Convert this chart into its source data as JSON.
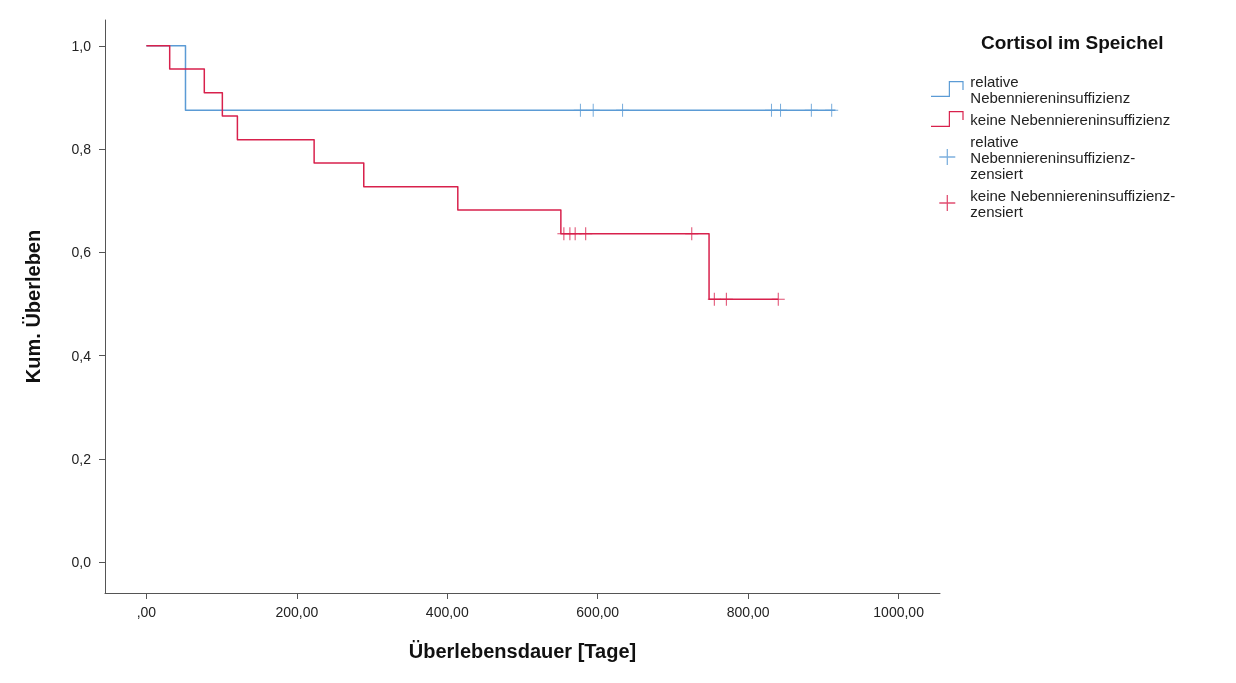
{
  "chart_data": {
    "type": "step",
    "xlabel": "Überlebensdauer [Tage]",
    "ylabel": "Kum. Überleben",
    "legend_title": "Cortisol im Speichel",
    "legend": "top right",
    "grid": false,
    "xlim": [
      -55,
      1055
    ],
    "xticks": [
      {
        "value": 0,
        "label": ",00"
      },
      {
        "value": 200,
        "label": "200,00"
      },
      {
        "value": 400,
        "label": "400,00"
      },
      {
        "value": 600,
        "label": "600,00"
      },
      {
        "value": 800,
        "label": "800,00"
      },
      {
        "value": 1000,
        "label": "1000,00"
      }
    ],
    "ylim": [
      -0.06,
      1.05
    ],
    "yticks": [
      {
        "value": 0,
        "label": "0,0"
      },
      {
        "value": 0.2,
        "label": "0,2"
      },
      {
        "value": 0.4,
        "label": "0,4"
      },
      {
        "value": 0.6,
        "label": "0,6"
      },
      {
        "value": 0.8,
        "label": "0,8"
      },
      {
        "value": 1,
        "label": "1,0"
      }
    ],
    "series": [
      {
        "name": "relative Nebenniereninsuffizienz",
        "color": "#5b9bd5",
        "marker": "none",
        "x": [
          0,
          52,
          916
        ],
        "values": [
          1,
          0.875,
          0.875
        ]
      },
      {
        "name": "keine Nebenniereninsuffizienz",
        "color": "#d8214c",
        "marker": "none",
        "x": [
          0,
          31,
          77,
          101,
          121,
          223,
          289,
          414,
          551,
          748,
          840
        ],
        "values": [
          1,
          0.955,
          0.909,
          0.864,
          0.818,
          0.773,
          0.727,
          0.682,
          0.636,
          0.509,
          0.509
        ]
      },
      {
        "name": "relative Nebenniereninsuffizienz-zensiert",
        "type": "scatter",
        "color": "#5b9bd5",
        "marker": "cross",
        "x": [
          577,
          594,
          633,
          831,
          843,
          884,
          911
        ],
        "values": [
          0.875,
          0.875,
          0.875,
          0.875,
          0.875,
          0.875,
          0.875
        ]
      },
      {
        "name": "keine Nebenniereninsuffizienz-zensiert",
        "type": "scatter",
        "color": "#d8214c",
        "marker": "cross",
        "x": [
          555,
          563,
          570,
          584,
          725,
          755,
          771,
          840
        ],
        "values": [
          0.636,
          0.636,
          0.636,
          0.636,
          0.636,
          0.509,
          0.509,
          0.509
        ]
      }
    ]
  }
}
